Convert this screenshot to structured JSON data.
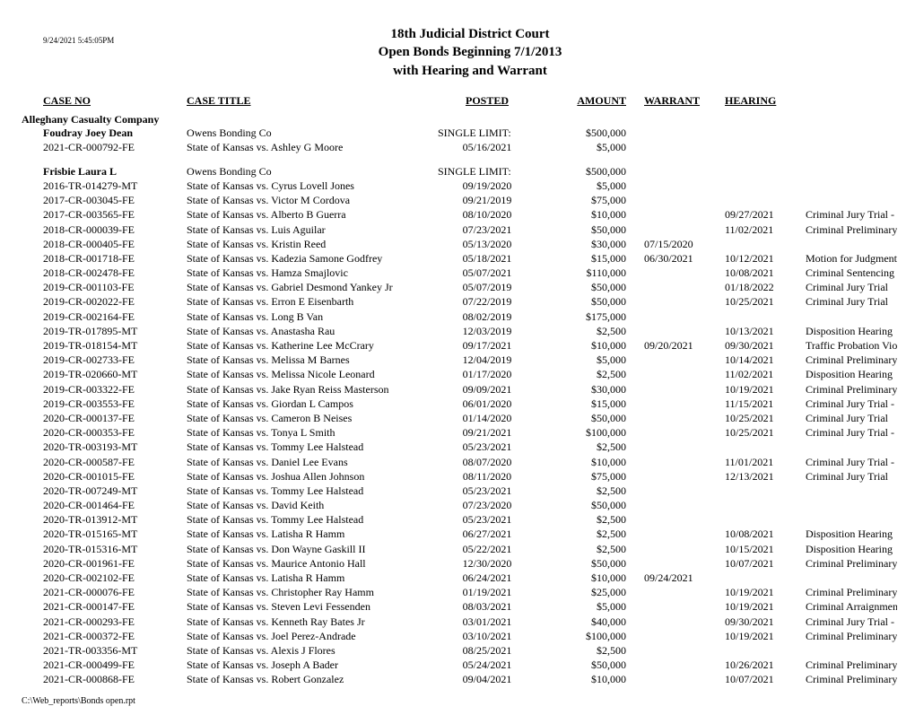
{
  "timestamp": "9/24/2021  5:45:05PM",
  "header": {
    "line1": "18th Judicial District Court",
    "line2": "Open Bonds Beginning 7/1/2013",
    "line3": "with Hearing and Warrant"
  },
  "columns": {
    "caseno": "CASE NO",
    "title": "CASE TITLE",
    "posted": "POSTED",
    "amount": "AMOUNT",
    "warrant": "WARRANT",
    "hearing": "HEARING"
  },
  "company": "Alleghany Casualty Company",
  "groups": [
    {
      "surety": "Foudray Joey Dean",
      "bonding_co": "Owens Bonding Co",
      "limit_label": "SINGLE LIMIT:",
      "limit_amount": "$500,000",
      "rows": [
        {
          "caseno": "2021-CR-000792-FE",
          "title": "State of Kansas  vs.  Ashley G Moore",
          "posted": "05/16/2021",
          "amount": "$5,000",
          "warrant": "",
          "hearing": "",
          "hrtype": ""
        }
      ]
    },
    {
      "surety": "Frisbie Laura L",
      "bonding_co": "Owens Bonding Co",
      "limit_label": "SINGLE LIMIT:",
      "limit_amount": "$500,000",
      "rows": [
        {
          "caseno": "2016-TR-014279-MT",
          "title": "State of Kansas  vs.  Cyrus Lovell Jones",
          "posted": "09/19/2020",
          "amount": "$5,000",
          "warrant": "",
          "hearing": "",
          "hrtype": ""
        },
        {
          "caseno": "2017-CR-003045-FE",
          "title": "State of Kansas  vs.  Victor M Cordova",
          "posted": "09/21/2019",
          "amount": "$75,000",
          "warrant": "",
          "hearing": "",
          "hrtype": ""
        },
        {
          "caseno": "2017-CR-003565-FE",
          "title": "State of Kansas  vs.  Alberto B Guerra",
          "posted": "08/10/2020",
          "amount": "$10,000",
          "warrant": "",
          "hearing": "09/27/2021",
          "hrtype": "Criminal Jury Trial - Control Only"
        },
        {
          "caseno": "2018-CR-000039-FE",
          "title": "State of Kansas  vs.  Luis Aguilar",
          "posted": "07/23/2021",
          "amount": "$50,000",
          "warrant": "",
          "hearing": "11/02/2021",
          "hrtype": "Criminal Preliminary Hearing - Evidentiary He"
        },
        {
          "caseno": "2018-CR-000405-FE",
          "title": "State of Kansas  vs.  Kristin Reed",
          "posted": "05/13/2020",
          "amount": "$30,000",
          "warrant": "07/15/2020",
          "hearing": "",
          "hrtype": ""
        },
        {
          "caseno": "2018-CR-001718-FE",
          "title": "State of Kansas  vs.  Kadezia Samone Godfrey",
          "posted": "05/18/2021",
          "amount": "$15,000",
          "warrant": "06/30/2021",
          "hearing": "10/12/2021",
          "hrtype": "Motion for Judgment on Forfeiture of Bond"
        },
        {
          "caseno": "2018-CR-002478-FE",
          "title": "State of Kansas  vs.  Hamza Smajlovic",
          "posted": "05/07/2021",
          "amount": "$110,000",
          "warrant": "",
          "hearing": "10/08/2021",
          "hrtype": "Criminal Sentencing"
        },
        {
          "caseno": "2019-CR-001103-FE",
          "title": "State of Kansas  vs.  Gabriel Desmond Yankey Jr",
          "posted": "05/07/2019",
          "amount": "$50,000",
          "warrant": "",
          "hearing": "01/18/2022",
          "hrtype": "Criminal Jury Trial"
        },
        {
          "caseno": "2019-CR-002022-FE",
          "title": "State of Kansas  vs.  Erron E Eisenbarth",
          "posted": "07/22/2019",
          "amount": "$50,000",
          "warrant": "",
          "hearing": "10/25/2021",
          "hrtype": "Criminal Jury Trial"
        },
        {
          "caseno": "2019-CR-002164-FE",
          "title": "State of Kansas  vs.  Long B Van",
          "posted": "08/02/2019",
          "amount": "$175,000",
          "warrant": "",
          "hearing": "",
          "hrtype": ""
        },
        {
          "caseno": "2019-TR-017895-MT",
          "title": "State of Kansas  vs.  Anastasha Rau",
          "posted": "12/03/2019",
          "amount": "$2,500",
          "warrant": "",
          "hearing": "10/13/2021",
          "hrtype": "Disposition Hearing"
        },
        {
          "caseno": "2019-TR-018154-MT",
          "title": "State of Kansas  vs.  Katherine Lee McCrary",
          "posted": "09/17/2021",
          "amount": "$10,000",
          "warrant": "09/20/2021",
          "hearing": "09/30/2021",
          "hrtype": "Traffic Probation Violation"
        },
        {
          "caseno": "2019-CR-002733-FE",
          "title": "State of Kansas  vs.  Melissa M Barnes",
          "posted": "12/04/2019",
          "amount": "$5,000",
          "warrant": "",
          "hearing": "10/14/2021",
          "hrtype": "Criminal Preliminary Hearing - CAD"
        },
        {
          "caseno": "2019-TR-020660-MT",
          "title": "State of Kansas  vs.  Melissa Nicole Leonard",
          "posted": "01/17/2020",
          "amount": "$2,500",
          "warrant": "",
          "hearing": "11/02/2021",
          "hrtype": "Disposition Hearing"
        },
        {
          "caseno": "2019-CR-003322-FE",
          "title": "State of Kansas  vs.  Jake Ryan Reiss Masterson",
          "posted": "09/09/2021",
          "amount": "$30,000",
          "warrant": "",
          "hearing": "10/19/2021",
          "hrtype": "Criminal Preliminary Hearing - Control Only"
        },
        {
          "caseno": "2019-CR-003553-FE",
          "title": "State of Kansas  vs.  Giordan L Campos",
          "posted": "06/01/2020",
          "amount": "$15,000",
          "warrant": "",
          "hearing": "11/15/2021",
          "hrtype": "Criminal Jury Trial - Control Only"
        },
        {
          "caseno": "2020-CR-000137-FE",
          "title": "State of Kansas  vs.  Cameron B Neises",
          "posted": "01/14/2020",
          "amount": "$50,000",
          "warrant": "",
          "hearing": "10/25/2021",
          "hrtype": "Criminal Jury Trial"
        },
        {
          "caseno": "2020-CR-000353-FE",
          "title": "State of Kansas  vs.  Tonya L Smith",
          "posted": "09/21/2021",
          "amount": "$100,000",
          "warrant": "",
          "hearing": "10/25/2021",
          "hrtype": "Criminal Jury Trial - Control Only"
        },
        {
          "caseno": "2020-TR-003193-MT",
          "title": "State of Kansas  vs.  Tommy Lee Halstead",
          "posted": "05/23/2021",
          "amount": "$2,500",
          "warrant": "",
          "hearing": "",
          "hrtype": ""
        },
        {
          "caseno": "2020-CR-000587-FE",
          "title": "State of Kansas  vs.  Daniel Lee Evans",
          "posted": "08/07/2020",
          "amount": "$10,000",
          "warrant": "",
          "hearing": "11/01/2021",
          "hrtype": "Criminal Jury Trial - Control Only"
        },
        {
          "caseno": "2020-CR-001015-FE",
          "title": "State of Kansas  vs.  Joshua Allen Johnson",
          "posted": "08/11/2020",
          "amount": "$75,000",
          "warrant": "",
          "hearing": "12/13/2021",
          "hrtype": "Criminal Jury Trial"
        },
        {
          "caseno": "2020-TR-007249-MT",
          "title": "State of Kansas  vs.  Tommy Lee Halstead",
          "posted": "05/23/2021",
          "amount": "$2,500",
          "warrant": "",
          "hearing": "",
          "hrtype": ""
        },
        {
          "caseno": "2020-CR-001464-FE",
          "title": "State of Kansas  vs.  David Keith",
          "posted": "07/23/2020",
          "amount": "$50,000",
          "warrant": "",
          "hearing": "",
          "hrtype": ""
        },
        {
          "caseno": "2020-TR-013912-MT",
          "title": "State of Kansas  vs.  Tommy Lee Halstead",
          "posted": "05/23/2021",
          "amount": "$2,500",
          "warrant": "",
          "hearing": "",
          "hrtype": ""
        },
        {
          "caseno": "2020-TR-015165-MT",
          "title": "State of Kansas  vs.  Latisha R Hamm",
          "posted": "06/27/2021",
          "amount": "$2,500",
          "warrant": "",
          "hearing": "10/08/2021",
          "hrtype": "Disposition Hearing"
        },
        {
          "caseno": "2020-TR-015316-MT",
          "title": "State of Kansas  vs.  Don Wayne Gaskill II",
          "posted": "05/22/2021",
          "amount": "$2,500",
          "warrant": "",
          "hearing": "10/15/2021",
          "hrtype": "Disposition Hearing"
        },
        {
          "caseno": "2020-CR-001961-FE",
          "title": "State of Kansas  vs.  Maurice Antonio Hall",
          "posted": "12/30/2020",
          "amount": "$50,000",
          "warrant": "",
          "hearing": "10/07/2021",
          "hrtype": "Criminal Preliminary Hearing - Evidentiary He"
        },
        {
          "caseno": "2020-CR-002102-FE",
          "title": "State of Kansas  vs.  Latisha R Hamm",
          "posted": "06/24/2021",
          "amount": "$10,000",
          "warrant": "09/24/2021",
          "hearing": "",
          "hrtype": ""
        },
        {
          "caseno": "2021-CR-000076-FE",
          "title": "State of Kansas  vs.  Christopher Ray Hamm",
          "posted": "01/19/2021",
          "amount": "$25,000",
          "warrant": "",
          "hearing": "10/19/2021",
          "hrtype": "Criminal Preliminary Hearing - Evidentiary He"
        },
        {
          "caseno": "2021-CR-000147-FE",
          "title": "State of Kansas  vs.  Steven Levi Fessenden",
          "posted": "08/03/2021",
          "amount": "$5,000",
          "warrant": "",
          "hearing": "10/19/2021",
          "hrtype": "Criminal Arraignment"
        },
        {
          "caseno": "2021-CR-000293-FE",
          "title": "State of Kansas  vs.  Kenneth Ray Bates Jr",
          "posted": "03/01/2021",
          "amount": "$40,000",
          "warrant": "",
          "hearing": "09/30/2021",
          "hrtype": "Criminal Jury Trial - Control Only"
        },
        {
          "caseno": "2021-CR-000372-FE",
          "title": "State of Kansas  vs.  Joel Perez-Andrade",
          "posted": "03/10/2021",
          "amount": "$100,000",
          "warrant": "",
          "hearing": "10/19/2021",
          "hrtype": "Criminal Preliminary Hearing - Waiver"
        },
        {
          "caseno": "2021-TR-003356-MT",
          "title": "State of Kansas  vs.  Alexis J Flores",
          "posted": "08/25/2021",
          "amount": "$2,500",
          "warrant": "",
          "hearing": "",
          "hrtype": ""
        },
        {
          "caseno": "2021-CR-000499-FE",
          "title": "State of Kansas  vs.  Joseph A Bader",
          "posted": "05/24/2021",
          "amount": "$50,000",
          "warrant": "",
          "hearing": "10/26/2021",
          "hrtype": "Criminal Preliminary Hearing - Control Only"
        },
        {
          "caseno": "2021-CR-000868-FE",
          "title": "State of Kansas  vs.  Robert Gonzalez",
          "posted": "09/04/2021",
          "amount": "$10,000",
          "warrant": "",
          "hearing": "10/07/2021",
          "hrtype": "Criminal Preliminary Hearing - Control Only"
        }
      ]
    }
  ],
  "footer": "C:\\Web_reports\\Bonds open.rpt"
}
